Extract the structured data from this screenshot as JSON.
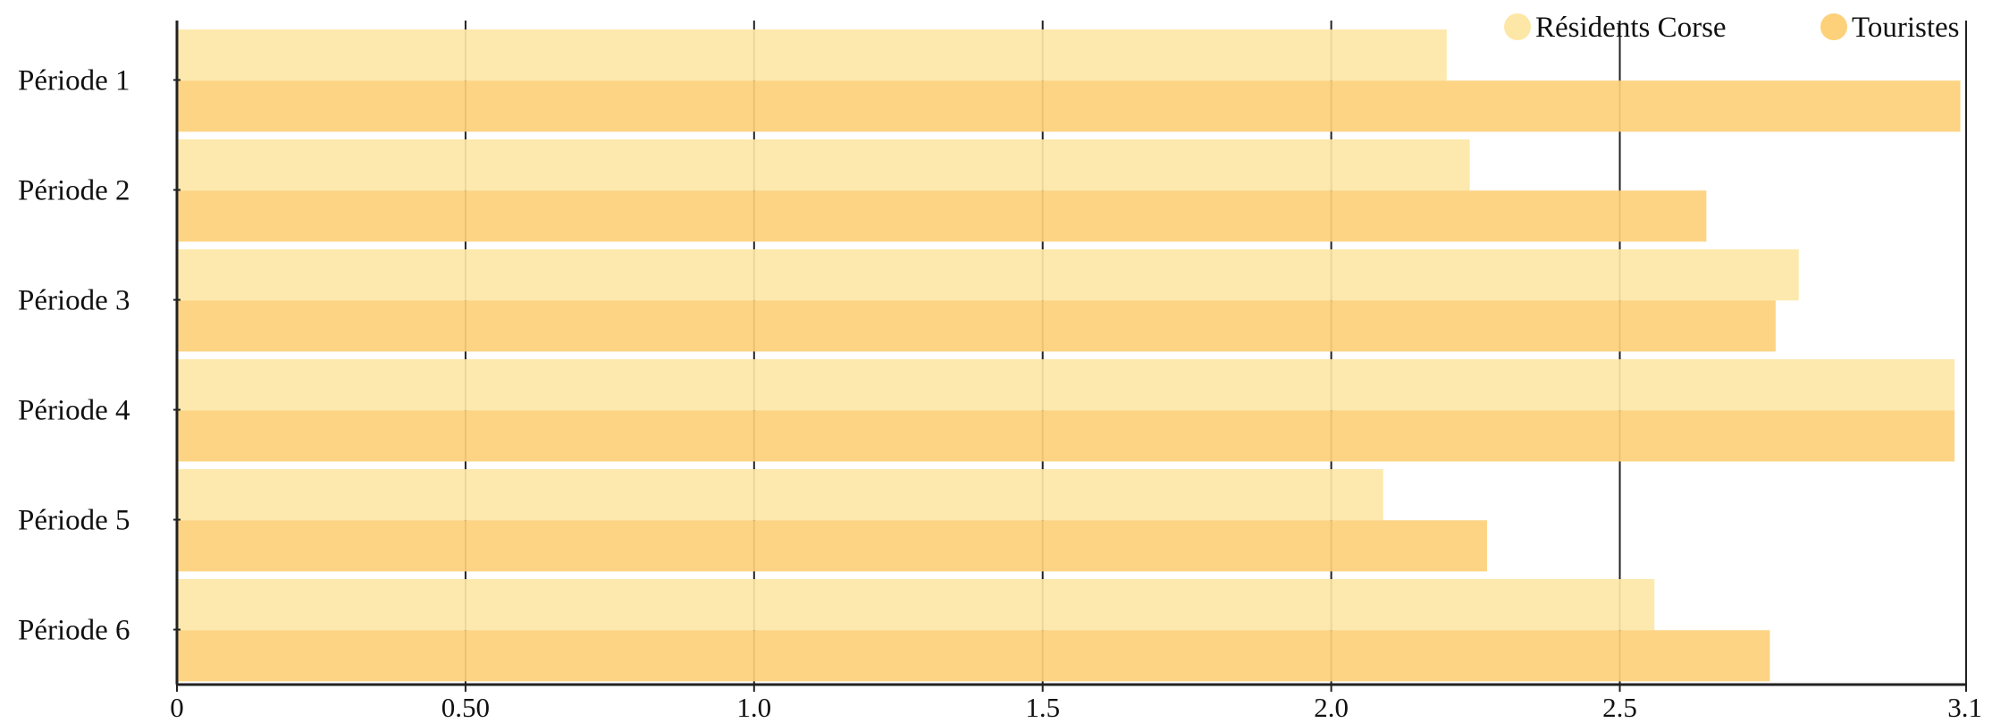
{
  "chart_data": {
    "type": "bar",
    "orientation": "horizontal",
    "categories": [
      "Période 1",
      "Période 2",
      "Période 3",
      "Période 4",
      "Période 5",
      "Période 6"
    ],
    "series": [
      {
        "name": "Résidents Corse",
        "color": "#FDE7A6",
        "values": [
          2.2,
          2.24,
          2.81,
          3.08,
          2.09,
          2.56
        ]
      },
      {
        "name": "Touristes",
        "color": "#FDD07A",
        "values": [
          3.09,
          2.65,
          2.77,
          3.08,
          2.27,
          2.76
        ]
      }
    ],
    "xlim": [
      0,
      3.1
    ],
    "xticks": [
      0,
      0.5,
      1.0,
      1.5,
      2.0,
      2.5,
      3.1
    ],
    "xtick_labels": [
      "0",
      "0.50",
      "1.0",
      "1.5",
      "2.0",
      "2.5",
      "3.1"
    ],
    "grid": "vertical",
    "legend_position": "top-right",
    "title": "",
    "xlabel": "",
    "ylabel": ""
  }
}
